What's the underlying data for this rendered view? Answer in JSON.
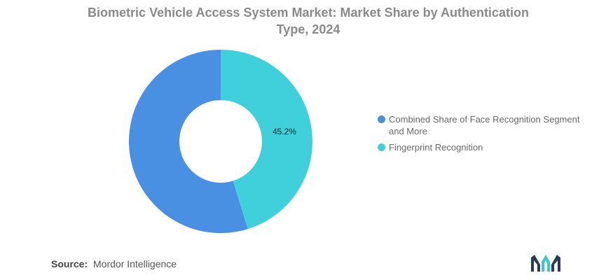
{
  "header": {
    "title": "Biometric Vehicle Access System Market: Market Share by Authentication Type, 2024"
  },
  "chart_data": {
    "type": "pie",
    "donut": true,
    "categories": [
      "Combined Share of Face Recognition Segment and More",
      "Fingerprint Recognition"
    ],
    "values": [
      54.8,
      45.2
    ],
    "labels": [
      "",
      "45.2%"
    ],
    "colors": [
      "#4a90e2",
      "#40d0dc"
    ],
    "title": "Biometric Vehicle Access System Market: Market Share by Authentication Type, 2024",
    "legend": "right"
  },
  "legend": {
    "items": [
      {
        "label": "Combined Share of Face Recognition Segment and More",
        "color": "#4a90e2"
      },
      {
        "label": "Fingerprint Recognition",
        "color": "#40d0dc"
      }
    ]
  },
  "footer": {
    "source_prefix": "Source:",
    "source_text": "Mordor Intelligence",
    "logo_icon": "mordor-intelligence-logo-icon",
    "logo_colors": [
      "#2a3a5c",
      "#3ec6d0"
    ]
  }
}
